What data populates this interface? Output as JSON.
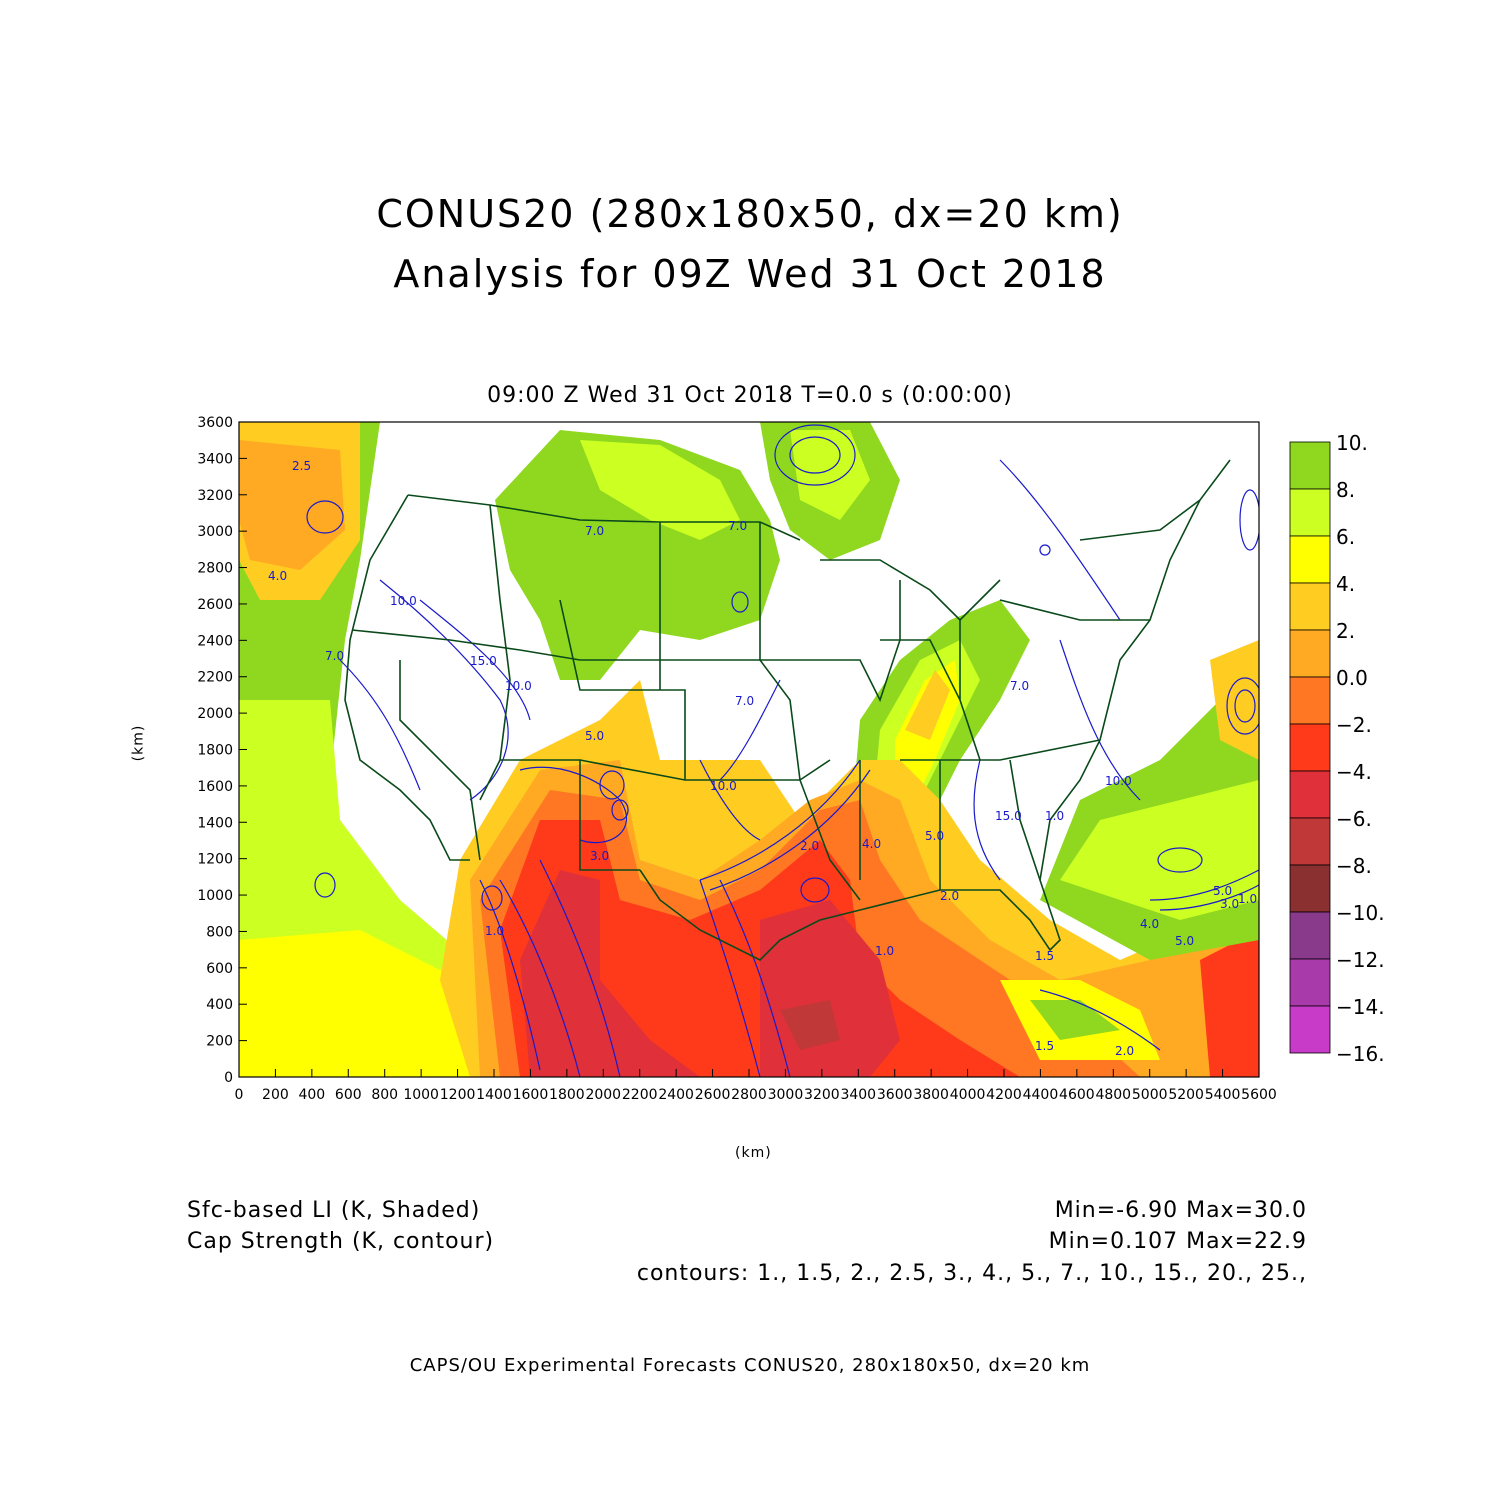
{
  "header": {
    "title_line1": "CONUS20 (280x180x50, dx=20 km)",
    "title_line2": "Analysis for 09Z Wed 31 Oct 2018",
    "subtitle": "09:00 Z Wed 31 Oct 2018    T=0.0 s (0:00:00)"
  },
  "axes": {
    "x_label": "(km)",
    "y_label": "(km)",
    "x_ticks": [
      "0",
      "200",
      "400",
      "600",
      "800",
      "1000",
      "1200",
      "1400",
      "1600",
      "1800",
      "2000",
      "2200",
      "2400",
      "2600",
      "2800",
      "3000",
      "3200",
      "3400",
      "3600",
      "3800",
      "4000",
      "4200",
      "4400",
      "4600",
      "4800",
      "5000",
      "5200",
      "5400",
      "5600"
    ],
    "y_ticks": [
      "0",
      "200",
      "400",
      "600",
      "800",
      "1000",
      "1200",
      "1400",
      "1600",
      "1800",
      "2000",
      "2200",
      "2400",
      "2600",
      "2800",
      "3000",
      "3200",
      "3400",
      "3600"
    ],
    "x_range_km": [
      0,
      5600
    ],
    "y_range_km": [
      0,
      3600
    ]
  },
  "colorbar": {
    "labels": [
      "10.",
      "8.",
      "6.",
      "4.",
      "2.",
      "0.0",
      "−2.",
      "−4.",
      "−6.",
      "−8.",
      "−10.",
      "−12.",
      "−14.",
      "−16."
    ],
    "colors": [
      "#8fd81f",
      "#ccff22",
      "#ffff00",
      "#ffcc22",
      "#ffaa22",
      "#ff7722",
      "#ff3a1a",
      "#e0303a",
      "#c03838",
      "#8a3030",
      "#8a3a8a",
      "#a83aaa",
      "#c83ac8",
      "#d840e0"
    ]
  },
  "legend": {
    "shaded_var": "Sfc-based LI (K, Shaded)",
    "contour_var": "Cap Strength (K, contour)",
    "shaded_stats": "Min=-6.90  Max=30.0",
    "contour_stats": "Min=0.107  Max=22.9",
    "contour_levels": "contours: 1., 1.5, 2., 2.5, 3., 4., 5., 7., 10., 15., 20., 25.,"
  },
  "contour_labels": [
    "2.5",
    "4.0",
    "7.0",
    "10.0",
    "15.0",
    "10.0",
    "7.0",
    "5.0",
    "3.0",
    "10.0",
    "7.0",
    "1.0",
    "7.0",
    "2.0",
    "4.0",
    "5.0",
    "1.0",
    "10.0",
    "15.0",
    "7.0",
    "5.0",
    "4.0",
    "3.0",
    "1.0",
    "2.0",
    "5.0",
    "2.0",
    "1.5",
    "1.5",
    "1.0"
  ],
  "footer": "CAPS/OU Experimental Forecasts  CONUS20, 280x180x50, dx=20 km",
  "map_colors": {
    "coastline": "#0a4a1a",
    "contour": "#1a1acc",
    "background": "#ffffff"
  }
}
